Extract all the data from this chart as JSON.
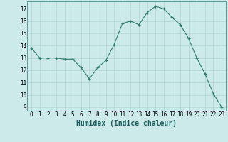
{
  "x": [
    0,
    1,
    2,
    3,
    4,
    5,
    6,
    7,
    8,
    9,
    10,
    11,
    12,
    13,
    14,
    15,
    16,
    17,
    18,
    19,
    20,
    21,
    22,
    23
  ],
  "y": [
    13.8,
    13.0,
    13.0,
    13.0,
    12.9,
    12.9,
    12.2,
    11.3,
    12.2,
    12.8,
    14.1,
    15.8,
    16.0,
    15.7,
    16.7,
    17.2,
    17.0,
    16.3,
    15.7,
    14.6,
    13.0,
    11.7,
    10.1,
    9.0
  ],
  "line_color": "#2e7d6e",
  "marker": "+",
  "marker_color": "#2e7d6e",
  "bg_color": "#cceaea",
  "grid_color": "#b0d4d4",
  "xlabel": "Humidex (Indice chaleur)",
  "xlim": [
    -0.5,
    23.5
  ],
  "ylim": [
    8.7,
    17.6
  ],
  "yticks": [
    9,
    10,
    11,
    12,
    13,
    14,
    15,
    16,
    17
  ],
  "xticks": [
    0,
    1,
    2,
    3,
    4,
    5,
    6,
    7,
    8,
    9,
    10,
    11,
    12,
    13,
    14,
    15,
    16,
    17,
    18,
    19,
    20,
    21,
    22,
    23
  ],
  "tick_fontsize": 5.5,
  "xlabel_fontsize": 7.0
}
